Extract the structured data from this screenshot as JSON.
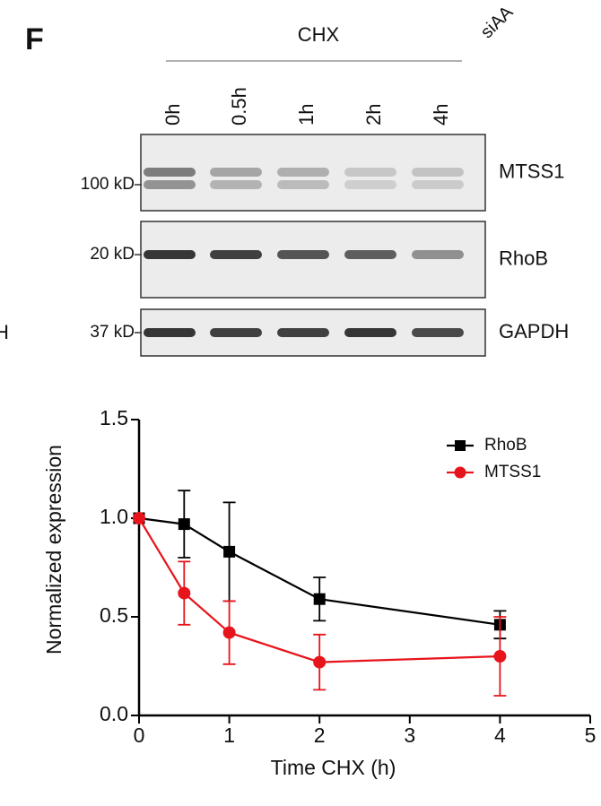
{
  "panel_label": "F",
  "blot": {
    "treatment": "CHX",
    "lanes": [
      "0h",
      "0.5h",
      "1h",
      "2h",
      "4h"
    ],
    "rows": [
      {
        "marker": "100 kD",
        "protein": "MTSS1"
      },
      {
        "marker": "20 kD",
        "protein": "RhoB"
      },
      {
        "marker": "37 kD",
        "protein": "GAPDH"
      }
    ],
    "cut_top_label": "siAA",
    "cut_left_label": "H"
  },
  "chart_data": {
    "type": "line",
    "xlabel": "Time CHX (h)",
    "ylabel": "Normalized expression",
    "x": [
      0,
      0.5,
      1,
      2,
      4
    ],
    "series": [
      {
        "name": "RhoB",
        "color": "#000000",
        "marker": "square",
        "values": [
          1.0,
          0.97,
          0.83,
          0.59,
          0.46
        ],
        "errors": [
          0,
          0.17,
          0.25,
          0.11,
          0.07
        ]
      },
      {
        "name": "MTSS1",
        "color": "#e8141b",
        "marker": "circle",
        "values": [
          1.0,
          0.62,
          0.42,
          0.27,
          0.3
        ],
        "errors": [
          0,
          0.16,
          0.16,
          0.14,
          0.2
        ]
      }
    ],
    "xlim": [
      0,
      5
    ],
    "xticks": [
      0,
      1,
      2,
      3,
      4,
      5
    ],
    "ylim": [
      0,
      1.5
    ],
    "yticks": [
      {
        "value": 0,
        "label": "0.0"
      },
      {
        "value": 0.5,
        "label": "0.5"
      },
      {
        "value": 1,
        "label": "1.0"
      },
      {
        "value": 1.5,
        "label": "1.5"
      }
    ],
    "legend": "upper right"
  }
}
